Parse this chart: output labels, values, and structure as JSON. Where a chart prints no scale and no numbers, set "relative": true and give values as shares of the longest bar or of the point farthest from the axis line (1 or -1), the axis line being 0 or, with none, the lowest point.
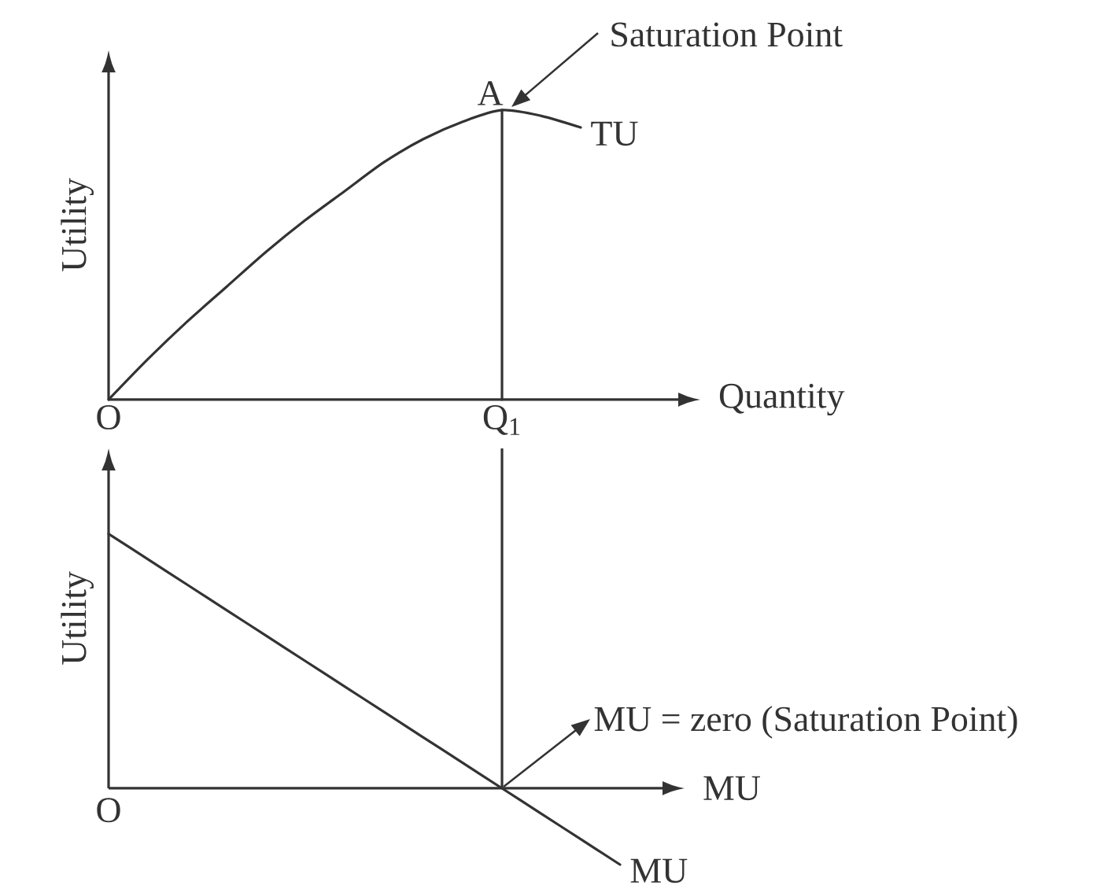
{
  "chart_data": [
    {
      "type": "line",
      "relative": true,
      "xlabel": "Quantity",
      "ylabel": "Utility",
      "categories": [
        "O",
        null,
        null,
        null,
        null,
        null,
        null,
        null,
        null,
        null,
        "Q$_{1}$",
        null,
        null
      ],
      "series": [
        {
          "name": "TU",
          "color": "#333333",
          "values": [
            0,
            0.14,
            0.27,
            0.39,
            0.51,
            0.62,
            0.72,
            0.82,
            0.9,
            0.96,
            1,
            0.98,
            0.94
          ]
        },
        {
          "color": "#333333",
          "x": [
            "Q$_{1}$",
            "Q$_{1}$"
          ],
          "values": [
            0,
            1
          ]
        }
      ],
      "annotations": [
        "Saturation Point",
        {
          "text": "A",
          "x": "Q$_{1}$",
          "y": 1
        }
      ]
    },
    {
      "type": "line",
      "relative": true,
      "xlabel": "MU",
      "ylabel": "Utility",
      "tick_labels": false,
      "categories": [
        "O",
        null,
        null,
        null,
        null,
        null,
        null,
        null,
        null,
        null,
        "Q$_{1}$",
        null,
        null,
        null
      ],
      "series": [
        {
          "name": "MU",
          "color": "#333333",
          "values": [
            1,
            0.9,
            0.8,
            0.7,
            0.6,
            0.5,
            0.4,
            0.3,
            0.2,
            0.1,
            0,
            -0.1,
            -0.2,
            -0.3
          ]
        }
      ],
      "ref_lines": [
        {
          "axis": "x",
          "value": "Q$_{1}$"
        }
      ],
      "annotations": [
        {
          "text": "MU = zero (Saturation Point)",
          "x": "Q$_{1}$",
          "y": 0
        },
        "O"
      ]
    }
  ]
}
